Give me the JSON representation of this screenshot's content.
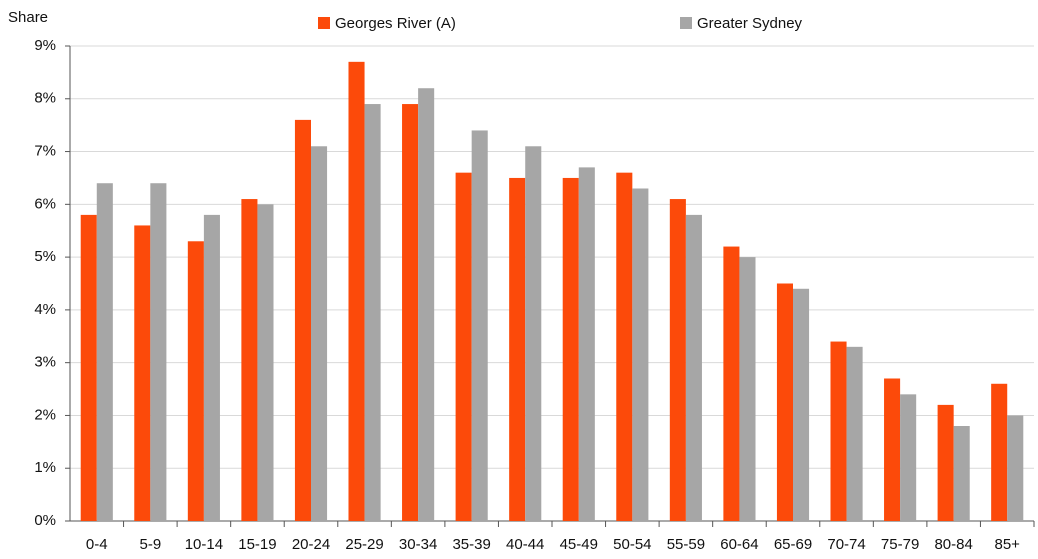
{
  "chart_data": {
    "type": "bar",
    "y_axis_label": "Share",
    "categories": [
      "0-4",
      "5-9",
      "10-14",
      "15-19",
      "20-24",
      "25-29",
      "30-34",
      "35-39",
      "40-44",
      "45-49",
      "50-54",
      "55-59",
      "60-64",
      "65-69",
      "70-74",
      "75-79",
      "80-84",
      "85+"
    ],
    "series": [
      {
        "name": "Georges River (A)",
        "color": "#fc4a0a",
        "values": [
          5.8,
          5.6,
          5.3,
          6.1,
          7.6,
          8.7,
          7.9,
          6.6,
          6.5,
          6.5,
          6.6,
          6.1,
          5.2,
          4.5,
          3.4,
          2.7,
          2.2,
          2.6
        ]
      },
      {
        "name": "Greater Sydney",
        "color": "#a6a6a6",
        "values": [
          6.4,
          6.4,
          5.8,
          6.0,
          7.1,
          7.9,
          8.2,
          7.4,
          7.1,
          6.7,
          6.3,
          5.8,
          5.0,
          4.4,
          3.3,
          2.4,
          1.8,
          2.0
        ]
      }
    ],
    "ylim": [
      0,
      9
    ],
    "yticks": [
      {
        "value": 0,
        "label": "0%"
      },
      {
        "value": 1,
        "label": "1%"
      },
      {
        "value": 2,
        "label": "2%"
      },
      {
        "value": 3,
        "label": "3%"
      },
      {
        "value": 4,
        "label": "4%"
      },
      {
        "value": 5,
        "label": "5%"
      },
      {
        "value": 6,
        "label": "6%"
      },
      {
        "value": 7,
        "label": "7%"
      },
      {
        "value": 8,
        "label": "8%"
      },
      {
        "value": 9,
        "label": "9%"
      }
    ],
    "grid": true,
    "legend": "top"
  }
}
